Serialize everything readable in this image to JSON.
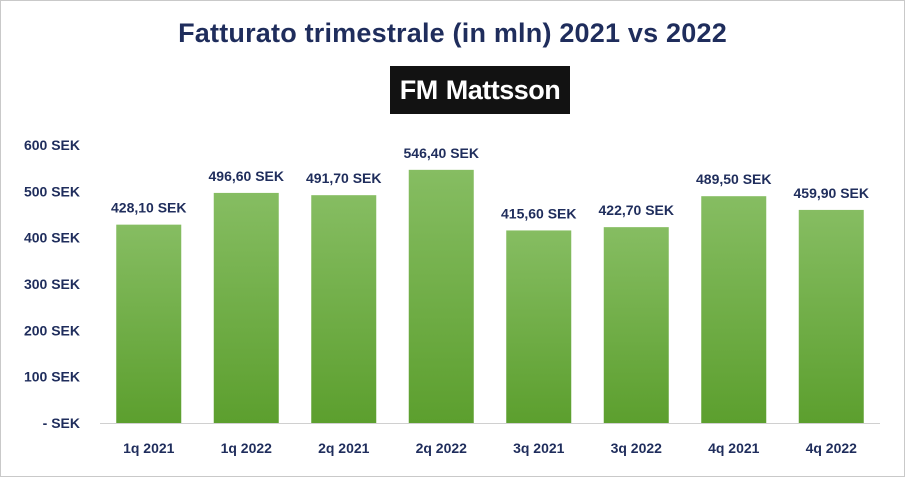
{
  "chart_data": {
    "type": "bar",
    "title": "Fatturato trimestrale (in mln) 2021 vs 2022",
    "logo": {
      "word1": "FM",
      "word2": "Mattsson"
    },
    "categories": [
      "1q 2021",
      "1q 2022",
      "2q 2021",
      "2q 2022",
      "3q 2021",
      "3q 2022",
      "4q 2021",
      "4q 2022"
    ],
    "values": [
      428.1,
      496.6,
      491.7,
      546.4,
      415.6,
      422.7,
      489.5,
      459.9
    ],
    "data_labels": [
      "428,10 SEK",
      "496,60 SEK",
      "491,70 SEK",
      "546,40 SEK",
      "415,60 SEK",
      "422,70 SEK",
      "489,50 SEK",
      "459,90 SEK"
    ],
    "y_ticks": [
      0,
      100,
      200,
      300,
      400,
      500,
      600
    ],
    "y_tick_labels": [
      "- SEK",
      "100 SEK",
      "200 SEK",
      "300 SEK",
      "400 SEK",
      "500 SEK",
      "600 SEK"
    ],
    "ylim": [
      0,
      600
    ],
    "grid": false,
    "legend": "none",
    "colors": {
      "bar_top": "#86bd62",
      "bar_bottom": "#5c9f2e",
      "text": "#1f2d5c",
      "axis": "#d0d0d0"
    }
  }
}
